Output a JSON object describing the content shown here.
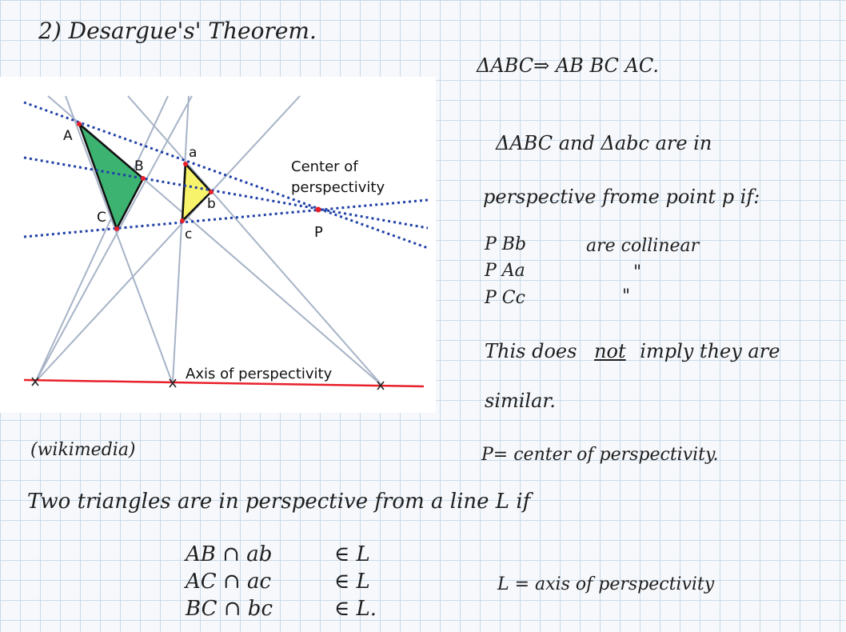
{
  "title": "2) Desargue's' Theorem.",
  "triangle_sides": "ΔABC⇒ AB BC AC.",
  "figure": {
    "labels": {
      "A": "A",
      "B": "B",
      "C": "C",
      "a": "a",
      "b": "b",
      "c": "c",
      "P": "P",
      "center_line1": "Center of",
      "center_line2": "perspectivity",
      "axis": "Axis of perspectivity"
    },
    "colors": {
      "big_triangle": "#3cb371",
      "small_triangle": "#f7f36b",
      "dotted_lines": "#1f3fa6",
      "axis_line": "#e8202a",
      "grey_lines": "#a7b3c7"
    }
  },
  "source_note": "(wikimedia)",
  "definition": {
    "line1_pre": "ΔABC and Δabc are in",
    "line2": "perspective frome point p if:",
    "rows": [
      {
        "points": "P Bb",
        "text": "are collinear"
      },
      {
        "points": "P Aa",
        "text": "\""
      },
      {
        "points": "P Cc",
        "text": "\""
      }
    ],
    "note_pre": "This does",
    "note_emph": "not",
    "note_post": "imply they are",
    "note_line2": "similar.",
    "center_def": "P= center of perspectivity."
  },
  "line_persp": {
    "heading": "Two triangles are in perspective from a line L if",
    "rows": [
      {
        "pair": "AB ∩ ab",
        "member": "∈ L"
      },
      {
        "pair": "AC ∩ ac",
        "member": "∈ L"
      },
      {
        "pair": "BC ∩ bc",
        "member": "∈ L."
      }
    ],
    "axis_def": "L = axis of perspectivity"
  }
}
